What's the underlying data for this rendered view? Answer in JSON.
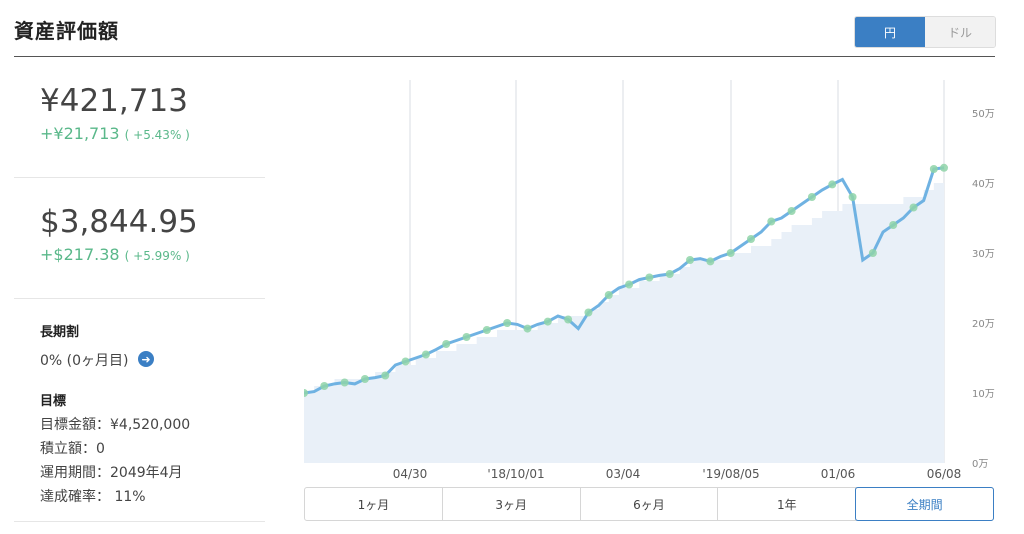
{
  "header": {
    "title": "資産評価額"
  },
  "currency_toggle": {
    "options": [
      "円",
      "ドル"
    ],
    "selected": "円"
  },
  "summary": {
    "jpy": {
      "value": "¥421,713",
      "change": "+¥21,713",
      "pct": "( +5.43% )"
    },
    "usd": {
      "value": "$3,844.95",
      "change": "+$217.38",
      "pct": "( +5.99% )"
    }
  },
  "long_term": {
    "label": "長期割",
    "value": "0% (0ヶ月目)"
  },
  "goal": {
    "label": "目標",
    "amount": "目標金額：¥4,520,000",
    "contribution": "積立額：0",
    "period": "運用期間：2049年4月",
    "probability": "達成確率： 11%"
  },
  "colors": {
    "accent": "#3b7fc4",
    "gain": "#5ab88a",
    "line": "#6fb2e2",
    "area": "#e9f0f8"
  },
  "range_buttons": [
    "1ヶ月",
    "3ヶ月",
    "6ヶ月",
    "1年",
    "全期間"
  ],
  "range_selected": "全期間",
  "chart_data": {
    "type": "line",
    "ylim": [
      0,
      500000
    ],
    "yticks": [
      {
        "v": 0,
        "label": "0万"
      },
      {
        "v": 100000,
        "label": "10万"
      },
      {
        "v": 200000,
        "label": "20万"
      },
      {
        "v": 300000,
        "label": "30万"
      },
      {
        "v": 400000,
        "label": "40万"
      },
      {
        "v": 500000,
        "label": "50万"
      }
    ],
    "xticks": [
      "04/30",
      "'18/10/01",
      "03/04",
      "'19/08/05",
      "01/06",
      "06/08"
    ],
    "series": [
      {
        "values": [
          100000,
          102000,
          110000,
          113000,
          115000,
          113000,
          120000,
          122000,
          125000,
          140000,
          145000,
          150000,
          155000,
          162000,
          170000,
          175000,
          180000,
          185000,
          190000,
          195000,
          200000,
          198000,
          192000,
          198000,
          202000,
          210000,
          205000,
          192000,
          215000,
          225000,
          240000,
          250000,
          255000,
          262000,
          265000,
          268000,
          270000,
          278000,
          290000,
          292000,
          288000,
          295000,
          300000,
          310000,
          320000,
          330000,
          345000,
          350000,
          360000,
          370000,
          380000,
          390000,
          398000,
          405000,
          380000,
          290000,
          300000,
          330000,
          340000,
          350000,
          365000,
          375000,
          420000,
          421713
        ]
      }
    ],
    "contributions": [
      100000,
      110000,
      110000,
      120000,
      120000,
      120000,
      120000,
      130000,
      130000,
      140000,
      140000,
      150000,
      150000,
      160000,
      160000,
      170000,
      170000,
      180000,
      180000,
      190000,
      190000,
      190000,
      190000,
      200000,
      200000,
      210000,
      210000,
      210000,
      220000,
      230000,
      240000,
      250000,
      250000,
      260000,
      260000,
      270000,
      270000,
      280000,
      290000,
      290000,
      290000,
      290000,
      300000,
      300000,
      310000,
      310000,
      320000,
      330000,
      340000,
      340000,
      350000,
      360000,
      360000,
      370000,
      370000,
      370000,
      370000,
      370000,
      370000,
      380000,
      380000,
      390000,
      400000,
      400000
    ]
  }
}
